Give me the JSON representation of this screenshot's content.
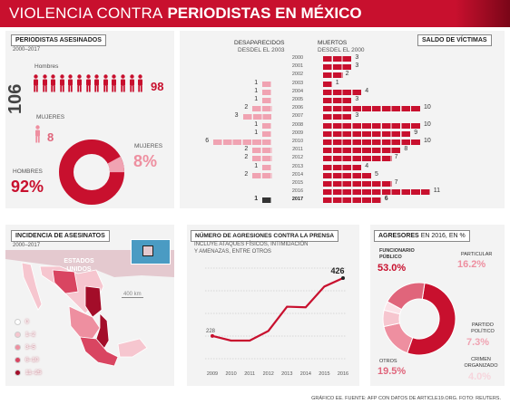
{
  "header": {
    "title_light": "VIOLENCIA CONTRA",
    "title_bold": "PERIODISTAS EN MÉXICO"
  },
  "asesinados": {
    "title": "PERIODISTAS ASESINADOS",
    "years": "2000–2017",
    "total": "106",
    "hombres_label": "Hombres",
    "hombres_count": "98",
    "mujeres_label": "MUJERES",
    "mujeres_count": "8",
    "donut_hombres_label": "HOMBRES",
    "donut_hombres_pct": "92%",
    "donut_mujeres_label": "MUJERES",
    "donut_mujeres_pct": "8%"
  },
  "saldo": {
    "title": "SALDO DE VÍCTIMAS",
    "left_label": "DESAPARECIDOS",
    "left_sub": "DESDEL EL 2003",
    "right_label": "MUERTOS",
    "right_sub": "DESDEL EL 2000",
    "rows": [
      {
        "year": "2000",
        "des": null,
        "mue": 3
      },
      {
        "year": "2001",
        "des": null,
        "mue": 3
      },
      {
        "year": "2002",
        "des": null,
        "mue": 2
      },
      {
        "year": "2003",
        "des": 1,
        "mue": 1
      },
      {
        "year": "2004",
        "des": 1,
        "mue": 4
      },
      {
        "year": "2005",
        "des": 1,
        "mue": 3
      },
      {
        "year": "2006",
        "des": 2,
        "mue": 10
      },
      {
        "year": "2007",
        "des": 3,
        "mue": 3
      },
      {
        "year": "2008",
        "des": 1,
        "mue": 10
      },
      {
        "year": "2009",
        "des": 1,
        "mue": 9
      },
      {
        "year": "2010",
        "des": 6,
        "mue": 10
      },
      {
        "year": "2011",
        "des": 2,
        "mue": 8
      },
      {
        "year": "2012",
        "des": 2,
        "mue": 7
      },
      {
        "year": "2013",
        "des": 1,
        "mue": 4
      },
      {
        "year": "2014",
        "des": 2,
        "mue": 5
      },
      {
        "year": "2015",
        "des": null,
        "mue": 7
      },
      {
        "year": "2016",
        "des": null,
        "mue": 11
      },
      {
        "year": "2017",
        "des": 1,
        "mue": 6
      }
    ]
  },
  "incidencia": {
    "title": "INCIDENCIA DE ASESINATOS",
    "years": "2000–2017",
    "us_label": "ESTADOS UNIDOS",
    "scale": "400 km",
    "legend": [
      {
        "label": "0",
        "color": "#ffffff"
      },
      {
        "label": "1–2",
        "color": "#f6c6cf"
      },
      {
        "label": "3–5",
        "color": "#ee8fa0"
      },
      {
        "label": "6–10",
        "color": "#d94561"
      },
      {
        "label": "11–25",
        "color": "#a30d29"
      }
    ]
  },
  "agresiones": {
    "title": "NÚMERO DE AGRESIONES CONTRA LA PRENSA",
    "subtitle1": "INCLUYE ATAQUES FÍSICOS, INTIMIDACIÓN",
    "subtitle2": "Y AMENAZAS, ENTRE OTROS",
    "start_label": "228",
    "end_label": "426"
  },
  "chart_data": {
    "type": "line",
    "x": [
      "2009",
      "2010",
      "2011",
      "2012",
      "2013",
      "2014",
      "2015",
      "2016"
    ],
    "values": [
      228,
      212,
      212,
      245,
      328,
      326,
      397,
      426
    ],
    "title": "NÚMERO DE AGRESIONES CONTRA LA PRENSA",
    "ylim": [
      150,
      460
    ]
  },
  "agresores": {
    "title": "AGRESORES",
    "title_suffix": "EN 2016, EN %",
    "items": [
      {
        "label": "FUNCIONARIO PÚBLICO",
        "pct": "53.0%",
        "value": 53.0,
        "color": "#c8102e"
      },
      {
        "label": "PARTICULAR",
        "pct": "16.2%",
        "value": 16.2,
        "color": "#ee8fa0"
      },
      {
        "label": "PARTIDO POLÍTICO",
        "pct": "7.3%",
        "value": 7.3,
        "color": "#f6c6cf"
      },
      {
        "label": "CRIMEN ORGANIZADO",
        "pct": "4.0%",
        "value": 4.0,
        "color": "#fbe3e8"
      },
      {
        "label": "OTROS",
        "pct": "19.5%",
        "value": 19.5,
        "color": "#e0657b"
      }
    ]
  },
  "footer": "GRÁFICO EE. FUENTE: AFP CON DATOS DE ARTICLE19.ORG. FOTO: REUTERS."
}
